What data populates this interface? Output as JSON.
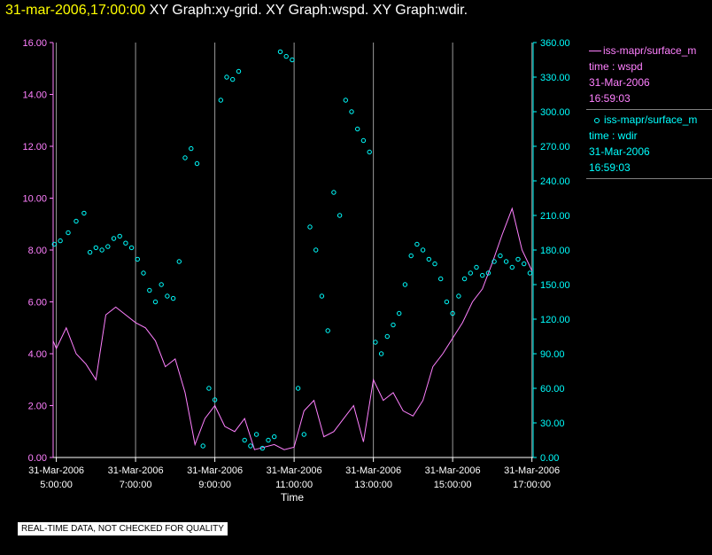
{
  "header": {
    "time": "31-mar-2006,17:00:00",
    "graphs": "XY Graph:xy-grid.  XY Graph:wspd.  XY Graph:wdir."
  },
  "legend": {
    "wspd": {
      "source": "iss-mapr/surface_m",
      "variable": "time : wspd",
      "date": "31-Mar-2006",
      "time": "16:59:03",
      "color": "#ff80ff"
    },
    "wdir": {
      "source": "iss-mapr/surface_m",
      "variable": "time : wdir",
      "date": "31-Mar-2006",
      "time": "16:59:03",
      "color": "#00ffff"
    }
  },
  "disclaimer": "REAL-TIME DATA, NOT CHECKED FOR QUALITY",
  "chart_data": {
    "type": "scatter",
    "xlabel": "Time",
    "xlim": [
      4.92,
      17.03
    ],
    "xticks": [
      {
        "x": 5,
        "date": "31-Mar-2006",
        "time": "5:00:00"
      },
      {
        "x": 7,
        "date": "31-Mar-2006",
        "time": "7:00:00"
      },
      {
        "x": 9,
        "date": "31-Mar-2006",
        "time": "9:00:00"
      },
      {
        "x": 11,
        "date": "31-Mar-2006",
        "time": "11:00:00"
      },
      {
        "x": 13,
        "date": "31-Mar-2006",
        "time": "13:00:00"
      },
      {
        "x": 15,
        "date": "31-Mar-2006",
        "time": "15:00:00"
      },
      {
        "x": 17,
        "date": "31-Mar-2006",
        "time": "17:00:00"
      }
    ],
    "y_left": {
      "ylim": [
        0,
        16
      ],
      "ticks": [
        "0.00",
        "2.00",
        "4.00",
        "6.00",
        "8.00",
        "10.00",
        "12.00",
        "14.00",
        "16.00"
      ],
      "color": "#ff80ff"
    },
    "y_right": {
      "ylim": [
        0,
        360
      ],
      "ticks": [
        "0.00",
        "30.00",
        "60.00",
        "90.00",
        "120.00",
        "150.00",
        "180.00",
        "210.00",
        "240.00",
        "270.00",
        "300.00",
        "330.00",
        "360.00"
      ],
      "color": "#00ffff"
    },
    "grid": "vertical lines at hour ticks",
    "series": [
      {
        "name": "time : wspd",
        "axis": "left",
        "style": "line",
        "color": "#ff80ff",
        "x": [
          4.92,
          5.0,
          5.25,
          5.5,
          5.75,
          6.0,
          6.25,
          6.5,
          6.75,
          7.0,
          7.25,
          7.5,
          7.75,
          8.0,
          8.25,
          8.5,
          8.75,
          9.0,
          9.25,
          9.5,
          9.75,
          10.0,
          10.25,
          10.5,
          10.75,
          11.0,
          11.25,
          11.5,
          11.75,
          12.0,
          12.25,
          12.5,
          12.75,
          13.0,
          13.25,
          13.5,
          13.75,
          14.0,
          14.25,
          14.5,
          14.75,
          15.0,
          15.25,
          15.5,
          15.75,
          16.0,
          16.25,
          16.5,
          16.75,
          17.0
        ],
        "y": [
          4.5,
          4.2,
          5.0,
          4.0,
          3.6,
          3.0,
          5.5,
          5.8,
          5.5,
          5.2,
          5.0,
          4.5,
          3.5,
          3.8,
          2.5,
          0.5,
          1.5,
          2.0,
          1.2,
          1.0,
          1.5,
          0.3,
          0.4,
          0.5,
          0.3,
          0.4,
          1.8,
          2.2,
          0.8,
          1.0,
          1.5,
          2.0,
          0.6,
          3.0,
          2.2,
          2.5,
          1.8,
          1.6,
          2.2,
          3.5,
          4.0,
          4.6,
          5.2,
          6.0,
          6.5,
          7.5,
          8.6,
          9.6,
          8.0,
          7.2
        ]
      },
      {
        "name": "time : wdir",
        "axis": "right",
        "style": "circles",
        "color": "#00ffff",
        "x": [
          4.95,
          5.1,
          5.3,
          5.5,
          5.7,
          5.85,
          6.0,
          6.15,
          6.3,
          6.45,
          6.6,
          6.75,
          6.9,
          7.05,
          7.2,
          7.35,
          7.5,
          7.65,
          7.8,
          7.95,
          8.1,
          8.25,
          8.4,
          8.55,
          8.7,
          8.85,
          9.0,
          9.15,
          9.3,
          9.45,
          9.6,
          9.75,
          9.9,
          10.05,
          10.2,
          10.35,
          10.5,
          10.65,
          10.8,
          10.95,
          11.1,
          11.25,
          11.4,
          11.55,
          11.7,
          11.85,
          12.0,
          12.15,
          12.3,
          12.45,
          12.6,
          12.75,
          12.9,
          13.05,
          13.2,
          13.35,
          13.5,
          13.65,
          13.8,
          13.95,
          14.1,
          14.25,
          14.4,
          14.55,
          14.7,
          14.85,
          15.0,
          15.15,
          15.3,
          15.45,
          15.6,
          15.75,
          15.9,
          16.05,
          16.2,
          16.35,
          16.5,
          16.65,
          16.8,
          16.95
        ],
        "y": [
          185,
          188,
          195,
          205,
          212,
          178,
          182,
          180,
          183,
          190,
          192,
          186,
          182,
          172,
          160,
          145,
          135,
          150,
          140,
          138,
          170,
          260,
          268,
          255,
          10,
          60,
          50,
          310,
          330,
          328,
          335,
          15,
          10,
          20,
          8,
          15,
          18,
          352,
          348,
          345,
          60,
          20,
          200,
          180,
          140,
          110,
          230,
          210,
          310,
          300,
          285,
          275,
          265,
          100,
          90,
          105,
          115,
          125,
          150,
          175,
          185,
          180,
          172,
          168,
          155,
          135,
          125,
          140,
          155,
          160,
          165,
          158,
          160,
          170,
          175,
          170,
          165,
          172,
          168,
          160
        ]
      }
    ]
  }
}
